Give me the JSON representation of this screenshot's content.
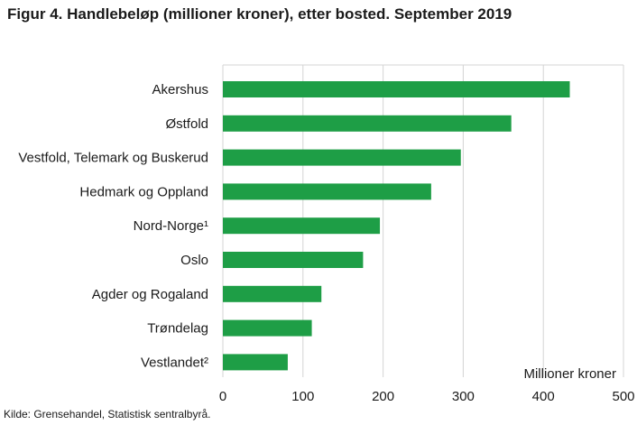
{
  "title": "Figur 4. Handlebeløp (millioner kroner), etter bosted. September 2019",
  "source": "Kilde: Grensehandel, Statistisk sentralbyrå.",
  "chart_data": {
    "type": "bar",
    "orientation": "horizontal",
    "categories": [
      "Akershus",
      "Østfold",
      "Vestfold, Telemark og Buskerud",
      "Hedmark og Oppland",
      "Nord-Norge¹",
      "Oslo",
      "Agder og Rogaland",
      "Trøndelag",
      "Vestlandet²"
    ],
    "values": [
      433,
      360,
      297,
      260,
      196,
      175,
      123,
      111,
      81
    ],
    "xlabel": "Millioner kroner",
    "ylabel": "",
    "xlim": [
      0,
      500
    ],
    "xticks": [
      0,
      100,
      200,
      300,
      400,
      500
    ],
    "grid": "vertical",
    "bar_color": "#1e9e46"
  }
}
